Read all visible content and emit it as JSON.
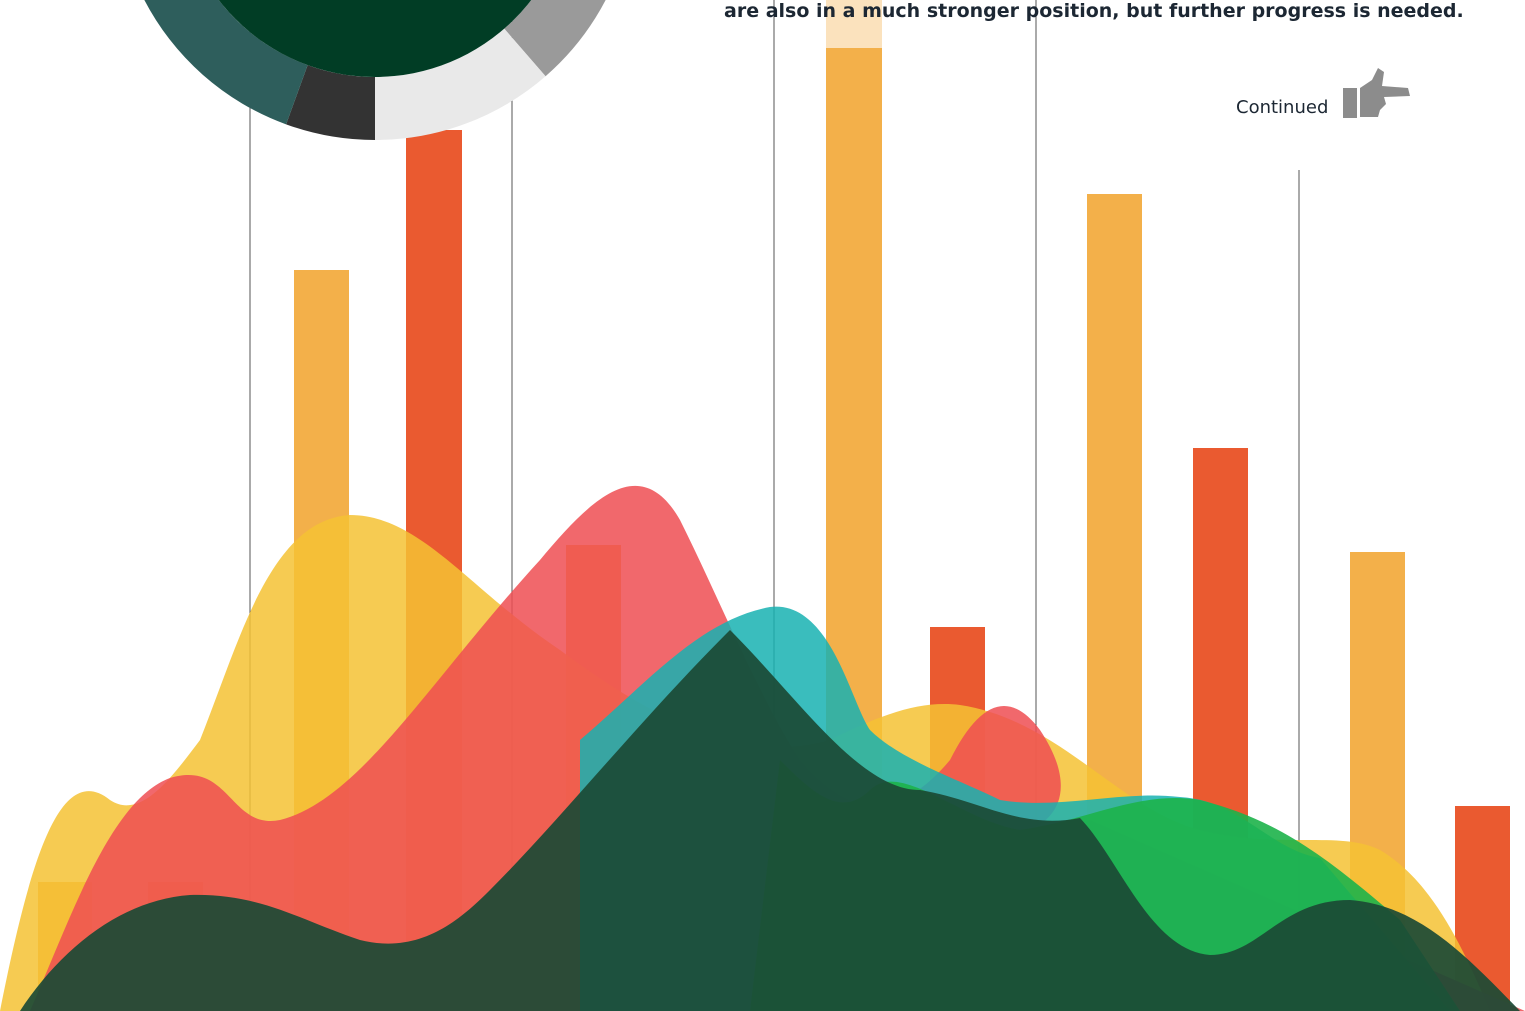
{
  "text": {
    "body_line": "are also in a much stronger position, but further progress is needed.",
    "continue_link": "Continued"
  }
}
